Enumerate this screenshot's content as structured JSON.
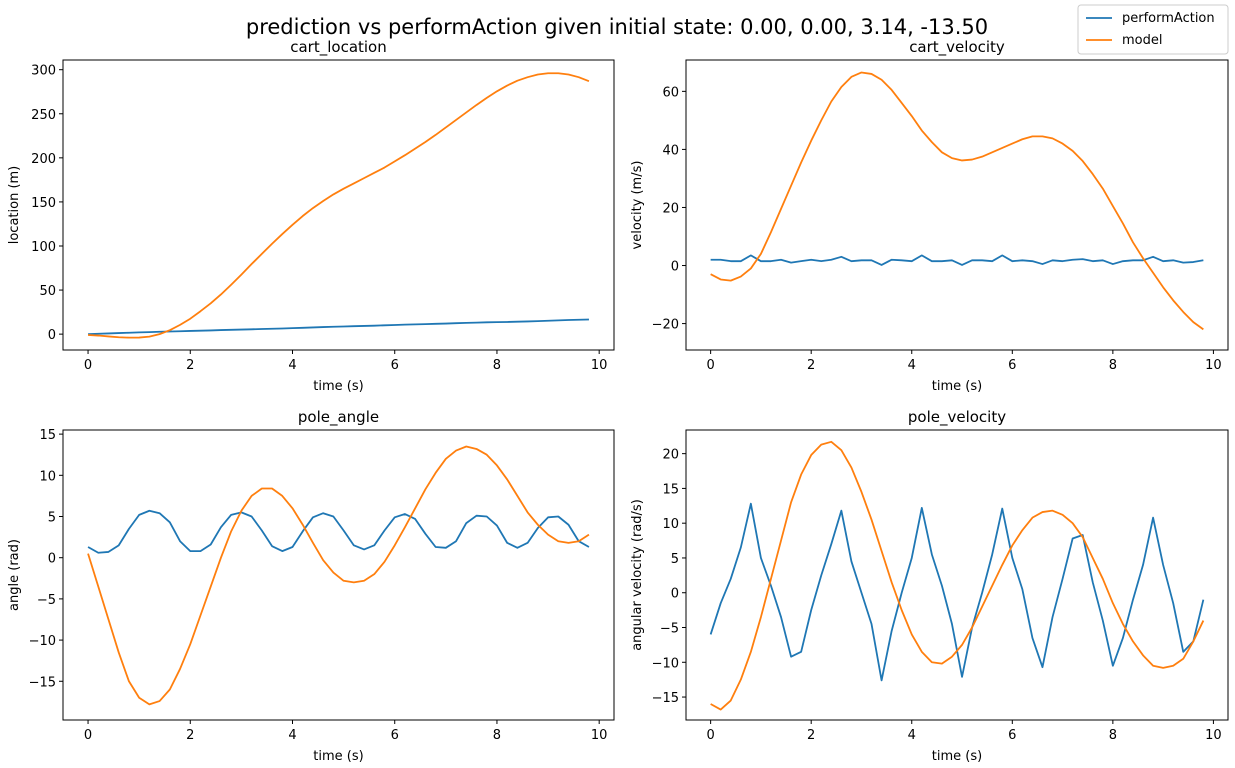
{
  "figure": {
    "suptitle": "prediction vs performAction given initial state: 0.00, 0.00, 3.14, -13.50"
  },
  "legend": {
    "location": "upper right of figure",
    "entries": [
      {
        "label": "performAction",
        "color": "#1f77b4"
      },
      {
        "label": "model",
        "color": "#ff7f0e"
      }
    ]
  },
  "chart_data": [
    {
      "type": "line",
      "title": "cart_location",
      "xlabel": "time (s)",
      "ylabel": "location (m)",
      "xlim": [
        -0.49,
        10.29
      ],
      "ylim": [
        -18,
        311
      ],
      "xticks": [
        0,
        2,
        4,
        6,
        8,
        10
      ],
      "yticks": [
        0,
        50,
        100,
        150,
        200,
        250,
        300
      ],
      "x": [
        0,
        0.2,
        0.4,
        0.6,
        0.8,
        1.0,
        1.2,
        1.4,
        1.6,
        1.8,
        2.0,
        2.2,
        2.4,
        2.6,
        2.8,
        3.0,
        3.2,
        3.4,
        3.6,
        3.8,
        4.0,
        4.2,
        4.4,
        4.6,
        4.8,
        5.0,
        5.2,
        5.4,
        5.6,
        5.8,
        6.0,
        6.2,
        6.4,
        6.6,
        6.8,
        7.0,
        7.2,
        7.4,
        7.6,
        7.8,
        8.0,
        8.2,
        8.4,
        8.6,
        8.8,
        9.0,
        9.2,
        9.4,
        9.6,
        9.8
      ],
      "series": [
        {
          "name": "performAction",
          "color": "#1f77b4",
          "values": [
            0.0,
            0.4,
            0.8,
            1.2,
            1.6,
            2.0,
            2.3,
            2.7,
            3.0,
            3.3,
            3.6,
            3.9,
            4.2,
            4.6,
            4.9,
            5.2,
            5.5,
            5.8,
            6.1,
            6.4,
            6.8,
            7.2,
            7.6,
            8.0,
            8.4,
            8.7,
            9.0,
            9.3,
            9.6,
            10.0,
            10.4,
            10.8,
            11.1,
            11.4,
            11.7,
            12.0,
            12.4,
            12.8,
            13.1,
            13.4,
            13.6,
            13.8,
            14.1,
            14.4,
            14.8,
            15.2,
            15.6,
            16.0,
            16.3,
            16.6
          ]
        },
        {
          "name": "model",
          "color": "#ff7f0e",
          "values": [
            -1.0,
            -1.6,
            -2.6,
            -3.5,
            -4.0,
            -3.9,
            -2.8,
            0.0,
            4.5,
            10.5,
            17.5,
            26.0,
            35.0,
            45.0,
            56.0,
            67.5,
            79.5,
            91.0,
            102.5,
            113.5,
            124.0,
            134.0,
            143.0,
            151.0,
            158.5,
            165.0,
            171.0,
            177.0,
            183.0,
            189.0,
            196.0,
            203.0,
            210.5,
            218.0,
            226.0,
            234.5,
            243.0,
            251.5,
            260.0,
            268.0,
            275.5,
            282.0,
            287.5,
            291.5,
            294.5,
            296.0,
            296.0,
            294.5,
            291.5,
            287.0
          ]
        }
      ]
    },
    {
      "type": "line",
      "title": "cart_velocity",
      "xlabel": "time (s)",
      "ylabel": "velocity (m/s)",
      "xlim": [
        -0.49,
        10.29
      ],
      "ylim": [
        -29.1,
        70.8
      ],
      "xticks": [
        0,
        2,
        4,
        6,
        8,
        10
      ],
      "yticks": [
        -20,
        0,
        20,
        40,
        60
      ],
      "x": [
        0,
        0.2,
        0.4,
        0.6,
        0.8,
        1.0,
        1.2,
        1.4,
        1.6,
        1.8,
        2.0,
        2.2,
        2.4,
        2.6,
        2.8,
        3.0,
        3.2,
        3.4,
        3.6,
        3.8,
        4.0,
        4.2,
        4.4,
        4.6,
        4.8,
        5.0,
        5.2,
        5.4,
        5.6,
        5.8,
        6.0,
        6.2,
        6.4,
        6.6,
        6.8,
        7.0,
        7.2,
        7.4,
        7.6,
        7.8,
        8.0,
        8.2,
        8.4,
        8.6,
        8.8,
        9.0,
        9.2,
        9.4,
        9.6,
        9.8
      ],
      "series": [
        {
          "name": "performAction",
          "color": "#1f77b4",
          "values": [
            2.0,
            2.0,
            1.5,
            1.5,
            3.5,
            1.5,
            1.5,
            2.0,
            1.0,
            1.5,
            2.0,
            1.5,
            2.0,
            3.0,
            1.5,
            1.8,
            1.8,
            0.2,
            2.0,
            1.8,
            1.5,
            3.5,
            1.5,
            1.5,
            1.8,
            0.2,
            1.8,
            1.8,
            1.5,
            3.5,
            1.5,
            1.8,
            1.5,
            0.5,
            1.8,
            1.5,
            2.0,
            2.2,
            1.5,
            1.8,
            0.5,
            1.5,
            1.8,
            1.8,
            3.0,
            1.5,
            1.8,
            1.0,
            1.2,
            1.8
          ]
        },
        {
          "name": "model",
          "color": "#ff7f0e",
          "values": [
            -3.0,
            -4.8,
            -5.2,
            -3.8,
            -1.0,
            4.0,
            11.5,
            19.5,
            27.5,
            35.5,
            43.0,
            50.0,
            56.5,
            61.5,
            65.0,
            66.5,
            66.0,
            64.0,
            60.5,
            56.0,
            51.5,
            46.5,
            42.5,
            39.0,
            37.0,
            36.2,
            36.5,
            37.5,
            39.0,
            40.5,
            42.0,
            43.5,
            44.5,
            44.5,
            43.8,
            42.0,
            39.5,
            36.0,
            31.5,
            26.5,
            20.5,
            14.5,
            8.0,
            2.5,
            -2.5,
            -7.5,
            -12.0,
            -16.0,
            -19.5,
            -22.0
          ]
        }
      ]
    },
    {
      "type": "line",
      "title": "pole_angle",
      "xlabel": "time (s)",
      "ylabel": "angle (rad)",
      "xlim": [
        -0.49,
        10.29
      ],
      "ylim": [
        -19.7,
        15.5
      ],
      "xticks": [
        0,
        2,
        4,
        6,
        8,
        10
      ],
      "yticks": [
        -15,
        -10,
        -5,
        0,
        5,
        10,
        15
      ],
      "x": [
        0,
        0.2,
        0.4,
        0.6,
        0.8,
        1.0,
        1.2,
        1.4,
        1.6,
        1.8,
        2.0,
        2.2,
        2.4,
        2.6,
        2.8,
        3.0,
        3.2,
        3.4,
        3.6,
        3.8,
        4.0,
        4.2,
        4.4,
        4.6,
        4.8,
        5.0,
        5.2,
        5.4,
        5.6,
        5.8,
        6.0,
        6.2,
        6.4,
        6.6,
        6.8,
        7.0,
        7.2,
        7.4,
        7.6,
        7.8,
        8.0,
        8.2,
        8.4,
        8.6,
        8.8,
        9.0,
        9.2,
        9.4,
        9.6,
        9.8
      ],
      "series": [
        {
          "name": "performAction",
          "color": "#1f77b4",
          "values": [
            1.3,
            0.6,
            0.7,
            1.5,
            3.5,
            5.2,
            5.7,
            5.4,
            4.3,
            2.0,
            0.8,
            0.8,
            1.6,
            3.7,
            5.2,
            5.5,
            5.0,
            3.3,
            1.4,
            0.8,
            1.3,
            3.2,
            4.9,
            5.4,
            5.0,
            3.3,
            1.5,
            1.0,
            1.5,
            3.3,
            4.9,
            5.3,
            4.7,
            2.9,
            1.3,
            1.2,
            2.0,
            4.2,
            5.1,
            5.0,
            3.9,
            1.8,
            1.2,
            1.8,
            3.6,
            4.9,
            5.0,
            4.0,
            2.0,
            1.3
          ]
        },
        {
          "name": "model",
          "color": "#ff7f0e",
          "values": [
            0.5,
            -3.5,
            -7.5,
            -11.5,
            -15.0,
            -17.0,
            -17.8,
            -17.4,
            -16.0,
            -13.5,
            -10.5,
            -7.0,
            -3.5,
            0.0,
            3.2,
            5.7,
            7.5,
            8.4,
            8.4,
            7.5,
            6.0,
            4.0,
            1.8,
            -0.3,
            -1.8,
            -2.8,
            -3.0,
            -2.8,
            -2.0,
            -0.5,
            1.5,
            3.7,
            6.0,
            8.3,
            10.3,
            12.0,
            13.0,
            13.5,
            13.2,
            12.5,
            11.2,
            9.5,
            7.5,
            5.5,
            4.0,
            2.8,
            2.0,
            1.8,
            2.0,
            2.8
          ]
        }
      ]
    },
    {
      "type": "line",
      "title": "pole_velocity",
      "xlabel": "time (s)",
      "ylabel": "angular velocity (rad/s)",
      "xlim": [
        -0.49,
        10.29
      ],
      "ylim": [
        -18.3,
        23.4
      ],
      "xticks": [
        0,
        2,
        4,
        6,
        8,
        10
      ],
      "yticks": [
        -15,
        -10,
        -5,
        0,
        5,
        10,
        15,
        20
      ],
      "x": [
        0,
        0.2,
        0.4,
        0.6,
        0.8,
        1.0,
        1.2,
        1.4,
        1.6,
        1.8,
        2.0,
        2.2,
        2.4,
        2.6,
        2.8,
        3.0,
        3.2,
        3.4,
        3.6,
        3.8,
        4.0,
        4.2,
        4.4,
        4.6,
        4.8,
        5.0,
        5.2,
        5.4,
        5.6,
        5.8,
        6.0,
        6.2,
        6.4,
        6.6,
        6.8,
        7.0,
        7.2,
        7.4,
        7.6,
        7.8,
        8.0,
        8.2,
        8.4,
        8.6,
        8.8,
        9.0,
        9.2,
        9.4,
        9.6,
        9.8
      ],
      "series": [
        {
          "name": "performAction",
          "color": "#1f77b4",
          "values": [
            -6.0,
            -1.5,
            2.0,
            6.5,
            12.8,
            5.0,
            1.0,
            -3.5,
            -9.2,
            -8.5,
            -2.5,
            2.5,
            7.0,
            11.8,
            4.5,
            0.0,
            -4.5,
            -12.6,
            -5.5,
            0.0,
            5.0,
            12.2,
            5.5,
            1.0,
            -4.5,
            -12.1,
            -5.0,
            0.0,
            5.5,
            12.1,
            5.0,
            0.5,
            -6.5,
            -10.7,
            -3.5,
            2.0,
            7.8,
            8.3,
            1.5,
            -4.0,
            -10.5,
            -6.5,
            -1.0,
            4.0,
            10.8,
            4.0,
            -1.5,
            -8.5,
            -7.0,
            -1.0
          ]
        },
        {
          "name": "model",
          "color": "#ff7f0e",
          "values": [
            -16.0,
            -16.8,
            -15.5,
            -12.5,
            -8.5,
            -3.5,
            2.0,
            7.5,
            13.0,
            17.0,
            19.8,
            21.3,
            21.7,
            20.5,
            18.0,
            14.5,
            10.5,
            6.0,
            1.5,
            -2.5,
            -6.0,
            -8.5,
            -10.0,
            -10.2,
            -9.2,
            -7.5,
            -5.0,
            -2.0,
            1.0,
            4.0,
            6.8,
            9.0,
            10.8,
            11.6,
            11.8,
            11.2,
            10.0,
            8.0,
            5.0,
            2.0,
            -1.5,
            -4.5,
            -7.0,
            -9.0,
            -10.5,
            -10.8,
            -10.5,
            -9.5,
            -7.0,
            -4.0
          ]
        }
      ]
    }
  ]
}
